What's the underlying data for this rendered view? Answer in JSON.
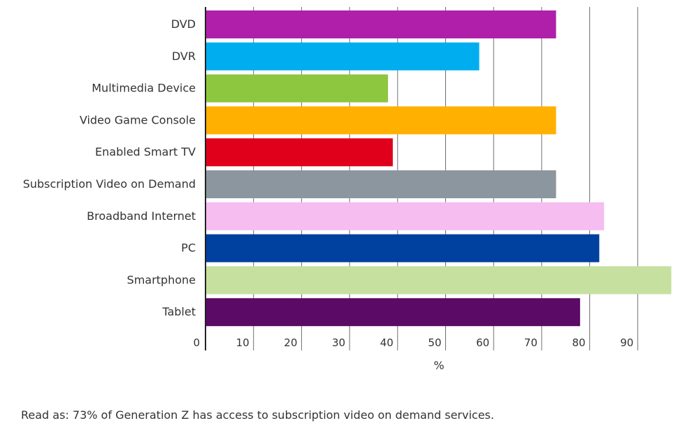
{
  "chart_data": {
    "type": "bar",
    "orientation": "horizontal",
    "categories": [
      "DVD",
      "DVR",
      "Multimedia Device",
      "Video Game Console",
      "Enabled Smart TV",
      "Subscription Video on Demand",
      "Broadband Internet",
      "PC",
      "Smartphone",
      "Tablet"
    ],
    "values": [
      73,
      57,
      38,
      73,
      39,
      73,
      83,
      82,
      97,
      78
    ],
    "colors": [
      "#b01faa",
      "#00aeef",
      "#8dc63f",
      "#ffb000",
      "#e0001b",
      "#8c969e",
      "#f5bdf0",
      "#00409e",
      "#c6e0a0",
      "#5b0a65"
    ],
    "xticks": [
      "0",
      "10",
      "20",
      "30",
      "40",
      "50",
      "60",
      "70",
      "80",
      "90"
    ],
    "xlim": [
      0,
      97
    ],
    "xlabel": "%",
    "ylabel": "",
    "title": "",
    "grid": "vertical"
  },
  "note": "Read as: 73% of Generation Z has access to subscription video on demand services."
}
